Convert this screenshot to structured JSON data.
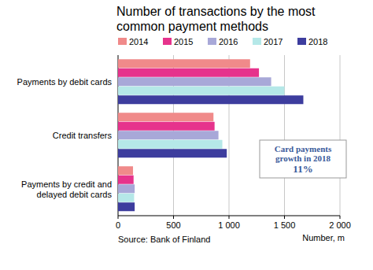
{
  "chart_data": {
    "type": "bar",
    "orientation": "horizontal",
    "title": "Number of transactions by the most common payment methods",
    "categories": [
      "Payments by debit cards",
      "Credit transfers",
      "Payments by credit and delayed debit cards"
    ],
    "series": [
      {
        "name": "2014",
        "color": "#f08a8a",
        "values": [
          1190,
          860,
          135
        ]
      },
      {
        "name": "2015",
        "color": "#e6338c",
        "values": [
          1270,
          870,
          140
        ]
      },
      {
        "name": "2016",
        "color": "#a8a8d8",
        "values": [
          1380,
          905,
          150
        ]
      },
      {
        "name": "2017",
        "color": "#b5e8e8",
        "values": [
          1500,
          940,
          145
        ]
      },
      {
        "name": "2018",
        "color": "#3d3d9e",
        "values": [
          1670,
          980,
          150
        ]
      }
    ],
    "xlim": [
      0,
      2000
    ],
    "xticks": [
      0,
      500,
      {
        "value": 1000,
        "label": "1 000"
      },
      {
        "value": 1500,
        "label": "1 500"
      },
      {
        "value": 2000,
        "label": "2 000"
      }
    ],
    "x_label": "Number, m",
    "grid": true,
    "legend": "top",
    "annotations": [
      "Card payments growth in 2018",
      "11%"
    ],
    "source": "Source: Bank of Finland"
  }
}
